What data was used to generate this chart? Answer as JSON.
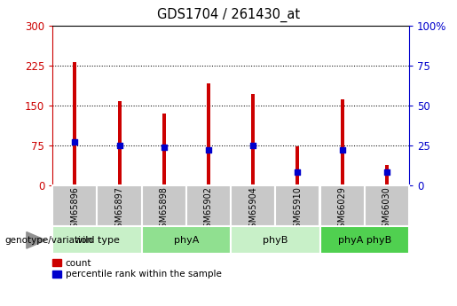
{
  "title": "GDS1704 / 261430_at",
  "samples": [
    "GSM65896",
    "GSM65897",
    "GSM65898",
    "GSM65902",
    "GSM65904",
    "GSM65910",
    "GSM66029",
    "GSM66030"
  ],
  "count_values": [
    232,
    158,
    135,
    192,
    172,
    73,
    162,
    38
  ],
  "percentile_values": [
    27,
    25,
    24,
    22,
    25,
    8,
    22,
    8
  ],
  "groups": [
    {
      "label": "wild type",
      "start": 0,
      "end": 2,
      "color": "#c8f0c8"
    },
    {
      "label": "phyA",
      "start": 2,
      "end": 4,
      "color": "#90e090"
    },
    {
      "label": "phyB",
      "start": 4,
      "end": 6,
      "color": "#c8f0c8"
    },
    {
      "label": "phyA phyB",
      "start": 6,
      "end": 8,
      "color": "#50d050"
    }
  ],
  "left_ylim": [
    0,
    300
  ],
  "right_ylim": [
    0,
    100
  ],
  "left_yticks": [
    0,
    75,
    150,
    225,
    300
  ],
  "right_yticks": [
    0,
    25,
    50,
    75,
    100
  ],
  "right_yticklabels": [
    "0",
    "25",
    "50",
    "75",
    "100%"
  ],
  "bar_color": "#cc0000",
  "percentile_color": "#0000cc",
  "grid_color": "black",
  "bg_xtick": "#c8c8c8",
  "legend_count_label": "count",
  "legend_pct_label": "percentile rank within the sample",
  "left_axis_color": "#cc0000",
  "right_axis_color": "#0000cc",
  "bar_width": 0.08
}
